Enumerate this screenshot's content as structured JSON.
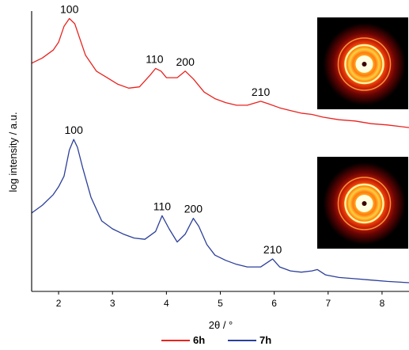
{
  "chart_data": {
    "type": "line",
    "title": "",
    "xlabel": "2θ / °",
    "ylabel": "log intensity / a.u.",
    "xlim": [
      1.5,
      8.5
    ],
    "ylim": [
      0,
      10
    ],
    "x_ticks": [
      2,
      3,
      4,
      5,
      6,
      7,
      8
    ],
    "y_ticks": [],
    "grid": false,
    "legend_position": "bottom-center",
    "series": [
      {
        "name": "6h",
        "color": "#e8231f",
        "x": [
          1.5,
          1.7,
          1.9,
          2.0,
          2.1,
          2.2,
          2.3,
          2.4,
          2.5,
          2.7,
          2.9,
          3.1,
          3.3,
          3.5,
          3.7,
          3.8,
          3.9,
          4.0,
          4.2,
          4.35,
          4.5,
          4.7,
          4.9,
          5.1,
          5.3,
          5.5,
          5.75,
          5.9,
          6.1,
          6.3,
          6.5,
          6.7,
          6.9,
          7.2,
          7.5,
          7.8,
          8.1,
          8.5
        ],
        "y": [
          8.5,
          8.7,
          9.0,
          9.3,
          9.9,
          10.2,
          10.0,
          9.4,
          8.8,
          8.2,
          7.95,
          7.7,
          7.55,
          7.6,
          8.05,
          8.3,
          8.2,
          7.95,
          7.95,
          8.2,
          7.9,
          7.4,
          7.15,
          7.0,
          6.9,
          6.9,
          7.05,
          6.95,
          6.8,
          6.7,
          6.6,
          6.55,
          6.45,
          6.35,
          6.3,
          6.2,
          6.15,
          6.05
        ]
      },
      {
        "name": "7h",
        "color": "#2b3f9a",
        "x": [
          1.5,
          1.7,
          1.9,
          2.0,
          2.1,
          2.2,
          2.28,
          2.35,
          2.45,
          2.6,
          2.8,
          3.0,
          3.2,
          3.4,
          3.6,
          3.8,
          3.92,
          4.05,
          4.2,
          4.35,
          4.5,
          4.6,
          4.75,
          4.9,
          5.1,
          5.3,
          5.5,
          5.75,
          5.97,
          6.1,
          6.3,
          6.5,
          6.7,
          6.8,
          6.95,
          7.2,
          7.5,
          7.8,
          8.1,
          8.5
        ],
        "y": [
          2.8,
          3.1,
          3.5,
          3.8,
          4.2,
          5.2,
          5.6,
          5.3,
          4.5,
          3.4,
          2.5,
          2.2,
          2.0,
          1.85,
          1.8,
          2.1,
          2.7,
          2.2,
          1.7,
          2.0,
          2.6,
          2.3,
          1.6,
          1.2,
          1.0,
          0.85,
          0.75,
          0.75,
          1.05,
          0.75,
          0.6,
          0.55,
          0.6,
          0.65,
          0.45,
          0.35,
          0.3,
          0.25,
          0.2,
          0.15
        ]
      }
    ],
    "annotations": [
      {
        "text": "100",
        "x": 2.2,
        "y": 10.2
      },
      {
        "text": "110",
        "x": 3.78,
        "y": 8.3
      },
      {
        "text": "200",
        "x": 4.35,
        "y": 8.2
      },
      {
        "text": "210",
        "x": 5.75,
        "y": 7.05
      },
      {
        "text": "100",
        "x": 2.28,
        "y": 5.6
      },
      {
        "text": "110",
        "x": 3.92,
        "y": 2.7
      },
      {
        "text": "200",
        "x": 4.5,
        "y": 2.6
      },
      {
        "text": "210",
        "x": 5.97,
        "y": 1.05
      }
    ],
    "insets": [
      {
        "name": "saxs-pattern-6h",
        "series": "6h"
      },
      {
        "name": "saxs-pattern-7h",
        "series": "7h"
      }
    ]
  }
}
